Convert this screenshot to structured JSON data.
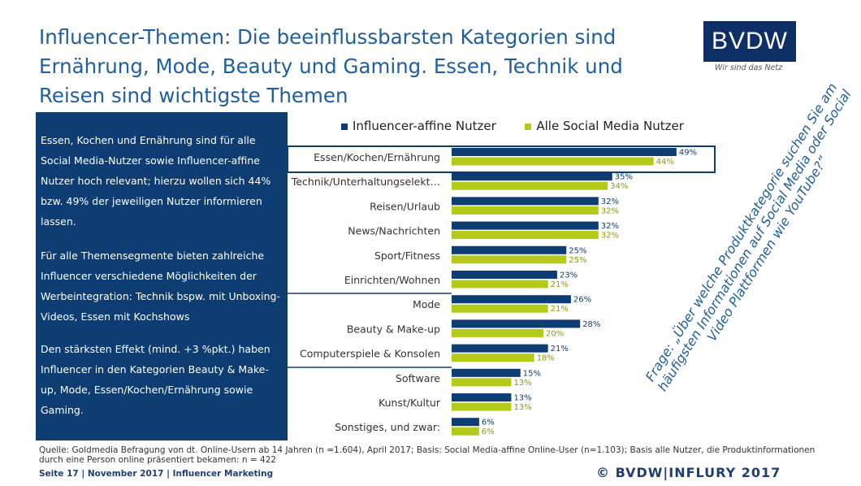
{
  "title": "Influencer-Themen: Die beeinflussbarsten Kategorien sind Ernährung, Mode, Beauty und Gaming. Essen, Technik und Reisen sind wichtigste Themen",
  "logo": {
    "text": "BVDW",
    "tagline": "Wir sind das Netz"
  },
  "left_box": {
    "paragraphs": [
      "Essen, Kochen und Ernährung sind für alle Social Media-Nutzer sowie Influencer-affine Nutzer hoch relevant; hierzu wollen sich 44% bzw. 49% der jeweiligen Nutzer informieren lassen.",
      "Für alle Themensegmente bieten zahlreiche Influencer verschiedene Möglichkeiten der Werbeintegration: Technik bspw. mit Unboxing-Videos, Essen mit Kochshows",
      "Den stärksten Effekt (mind. +3 %pkt.) haben Influencer in den Kategorien Beauty & Make-up, Mode, Essen/Kochen/Ernährung sowie Gaming."
    ]
  },
  "question": "Frage: „Über welche Produktkategorie suchen Sie am häufigsten Informationen auf Social Media oder Social Video Plattformen wie YouTube?“",
  "chart_data": {
    "type": "bar",
    "orientation": "horizontal",
    "categories": [
      "Essen/Kochen/Ernährung",
      "Technik/Unterhaltungselekt…",
      "Reisen/Urlaub",
      "News/Nachrichten",
      "Sport/Fitness",
      "Einrichten/Wohnen",
      "Mode",
      "Beauty & Make-up",
      "Computerspiele & Konsolen",
      "Software",
      "Kunst/Kultur",
      "Sonstiges, und zwar:"
    ],
    "series": [
      {
        "name": "Influencer-affine Nutzer",
        "color": "#0d3d73",
        "values": [
          49,
          35,
          32,
          32,
          25,
          23,
          26,
          28,
          21,
          15,
          13,
          6
        ]
      },
      {
        "name": "Alle Social Media Nutzer",
        "color": "#b5c918",
        "values": [
          44,
          34,
          32,
          32,
          25,
          21,
          21,
          20,
          18,
          13,
          13,
          6
        ]
      }
    ],
    "value_suffix": "%",
    "legend_position": "top",
    "highlighted_category": "Essen/Kochen/Ernährung"
  },
  "source": "Quelle: Goldmedia Befragung von dt. Online-Usern ab 14 Jahren (n =1.604), April 2017; Basis: Social Media-affine Online-User (n=1.103); Basis alle Nutzer, die Produktinformationen durch eine Person online präsentiert bekamen: n = 422",
  "footer": "Seite 17 | November 2017 | Influencer Marketing",
  "copyright": "© BVDW|INFLURY 2017"
}
